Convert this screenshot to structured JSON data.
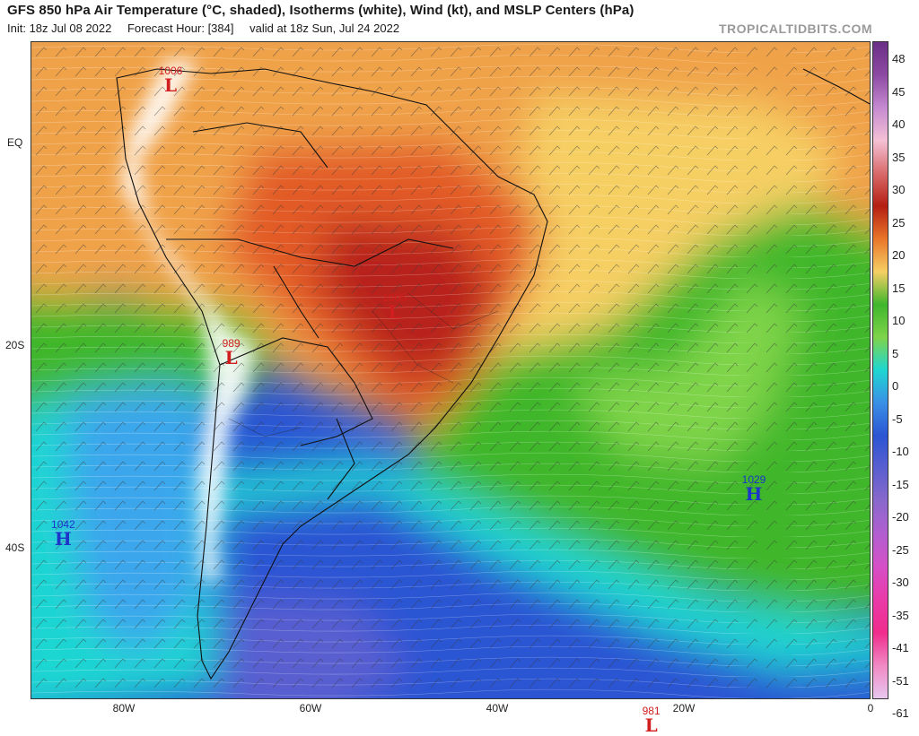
{
  "header": {
    "title": "GFS 850 hPa Air Temperature (°C, shaded), Isotherms (white), Wind (kt), and MSLP Centers (hPa)",
    "init": "Init: 18z Jul 08 2022",
    "forecast_hour": "Forecast Hour: [384]",
    "valid": "valid at 18z Sun, Jul 24 2022",
    "brand": "TROPICALTIDBITS.COM"
  },
  "axes": {
    "lat_labels": [
      "EQ",
      "20S",
      "40S"
    ],
    "lon_labels": [
      "80W",
      "60W",
      "40W",
      "20W",
      "0"
    ]
  },
  "colorbar": {
    "labels": [
      "48",
      "45",
      "40",
      "35",
      "30",
      "25",
      "20",
      "15",
      "10",
      "5",
      "0",
      "-5",
      "-10",
      "-15",
      "-20",
      "-25",
      "-30",
      "-35",
      "-41",
      "-51",
      "-61"
    ],
    "colors": [
      "#6a2f86",
      "#8d4aa3",
      "#c58ad0",
      "#f4c1d5",
      "#d96a6a",
      "#b51f12",
      "#e9762a",
      "#f6cf64",
      "#3fb72c",
      "#7fd44a",
      "#1fd6d2",
      "#3a8fe6",
      "#2b55d3",
      "#5a5fd0",
      "#8a68cc",
      "#b25ed0",
      "#d64fc6",
      "#ea3aa8",
      "#f02c8c",
      "#f089c4",
      "#e8c7ee"
    ]
  },
  "pressure_centers": [
    {
      "type": "L",
      "value": "1006",
      "lon": -75,
      "lat": 6.5
    },
    {
      "type": "L",
      "value": "1005",
      "lon": -51,
      "lat": -16
    },
    {
      "type": "L",
      "value": "989",
      "lon": -68.5,
      "lat": -20.5
    },
    {
      "type": "H",
      "value": "1042",
      "lon": -86.5,
      "lat": -38.5
    },
    {
      "type": "H",
      "value": "1029",
      "lon": -12.5,
      "lat": -34
    },
    {
      "type": "L",
      "value": "981",
      "lon": -23.5,
      "lat": -57
    }
  ]
}
